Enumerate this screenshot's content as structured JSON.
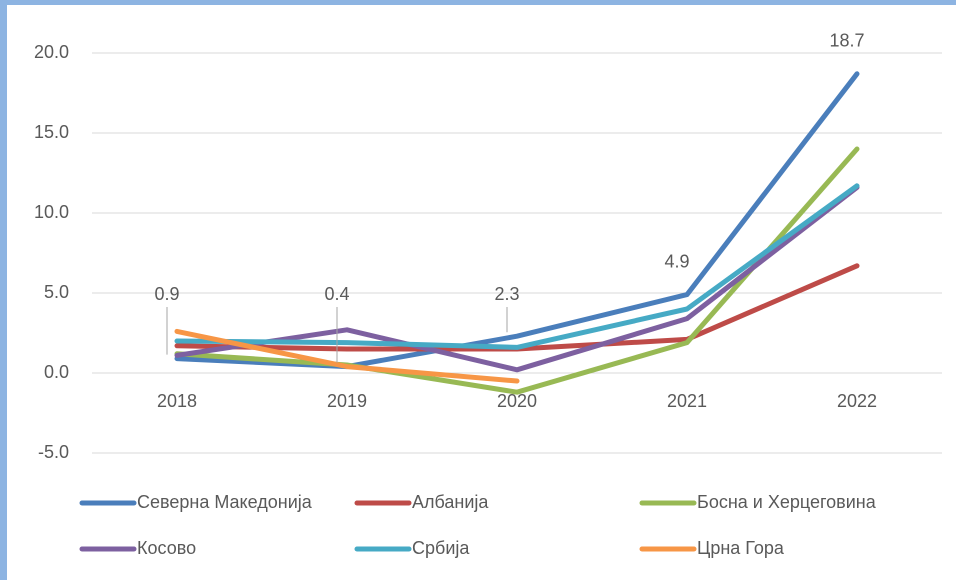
{
  "chart_data": {
    "type": "line",
    "categories": [
      "2018",
      "2019",
      "2020",
      "2021",
      "2022"
    ],
    "series": [
      {
        "name": "Северна Македонија",
        "color": "#4a7ebb",
        "values": [
          0.9,
          0.4,
          2.3,
          4.9,
          18.7
        ]
      },
      {
        "name": "Албанија",
        "color": "#be4b48",
        "values": [
          1.7,
          1.5,
          1.5,
          2.1,
          6.7
        ]
      },
      {
        "name": "Босна и Херцеговина",
        "color": "#98b954",
        "values": [
          1.2,
          0.5,
          -1.2,
          1.9,
          14.0
        ]
      },
      {
        "name": "Косово",
        "color": "#7d60a0",
        "values": [
          1.1,
          2.7,
          0.2,
          3.4,
          11.6
        ]
      },
      {
        "name": "Србија",
        "color": "#46aac5",
        "values": [
          2.0,
          1.9,
          1.6,
          4.0,
          11.7
        ]
      },
      {
        "name": "Црна Гора",
        "color": "#f79646",
        "values": [
          2.6,
          0.4,
          -0.5,
          null,
          null
        ]
      }
    ],
    "labeled_series": 0,
    "ylim": [
      -6.0,
      21.0
    ],
    "yticks": [
      {
        "value": -5,
        "label": "-5.0"
      },
      {
        "value": 0,
        "label": "0.0"
      },
      {
        "value": 5,
        "label": "5.0"
      },
      {
        "value": 10,
        "label": "10.0"
      },
      {
        "value": 15,
        "label": "15.0"
      },
      {
        "value": 20,
        "label": "20.0"
      }
    ],
    "grid": true,
    "legend": "bottom"
  }
}
